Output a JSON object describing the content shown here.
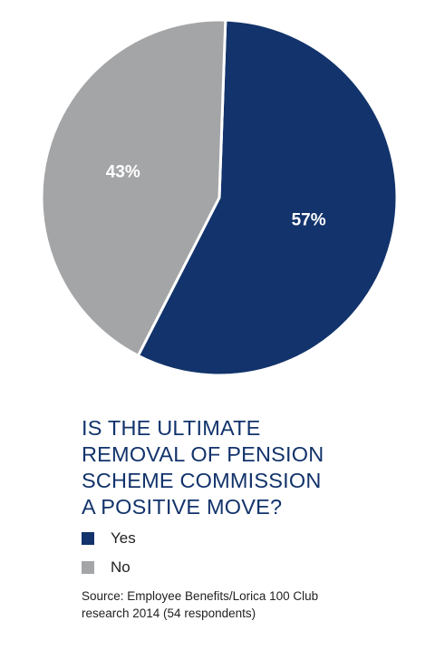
{
  "chart_data": {
    "type": "pie",
    "title": "IS THE ULTIMATE REMOVAL OF PENSION SCHEME COMMISSION A POSITIVE MOVE?",
    "title_lines": [
      "IS THE ULTIMATE",
      "REMOVAL OF PENSION",
      "SCHEME COMMISSION",
      "A POSITIVE MOVE?"
    ],
    "slices": [
      {
        "label": "Yes",
        "value": 57,
        "value_label": "57%",
        "color": "#12336b"
      },
      {
        "label": "No",
        "value": 43,
        "value_label": "43%",
        "color": "#a4a5a7"
      }
    ],
    "legend_placement": "bottom-left",
    "source_lines": [
      "Source: Employee Benefits/Lorica 100 Club",
      "research 2014 (54 respondents)"
    ]
  }
}
